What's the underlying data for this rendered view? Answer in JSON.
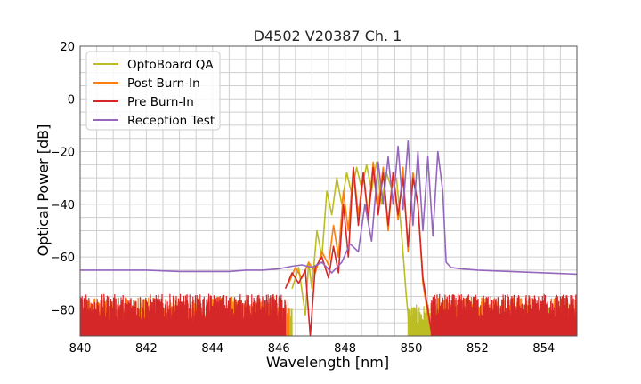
{
  "chart_data": {
    "type": "line",
    "title": "D4502 V20387 Ch. 1",
    "xlabel": "Wavelength [nm]",
    "ylabel": "Optical Power [dB]",
    "xlim": [
      840,
      855
    ],
    "ylim": [
      -90,
      20
    ],
    "xticks": [
      840,
      842,
      844,
      846,
      848,
      850,
      852,
      854
    ],
    "yticks": [
      20,
      0,
      -20,
      -40,
      -60,
      -80
    ],
    "grid": true,
    "legend_position": "top-left",
    "series": [
      {
        "name": "OptoBoard QA",
        "color": "#bcbd22",
        "noise_floor": {
          "from": 840,
          "to": 846.4,
          "base": -88,
          "spread": 10
        },
        "noise_floor_right": {
          "from": 849.9,
          "to": 855,
          "base": -88,
          "spread": 10
        },
        "x": [
          846.4,
          846.6,
          846.8,
          846.9,
          847.0,
          847.15,
          847.3,
          847.45,
          847.6,
          847.75,
          847.9,
          848.05,
          848.2,
          848.35,
          848.5,
          848.65,
          848.8,
          848.95,
          849.1,
          849.25,
          849.4,
          849.55,
          849.7,
          849.85,
          849.95
        ],
        "y": [
          -72,
          -64,
          -82,
          -62,
          -72,
          -50,
          -60,
          -35,
          -44,
          -30,
          -40,
          -28,
          -36,
          -26,
          -34,
          -25,
          -35,
          -24,
          -40,
          -28,
          -34,
          -30,
          -50,
          -75,
          -88
        ]
      },
      {
        "name": "Post Burn-In",
        "color": "#ff7f0e",
        "noise_floor": {
          "from": 840,
          "to": 846.3,
          "base": -87,
          "spread": 12
        },
        "noise_floor_right": {
          "from": 850.6,
          "to": 855,
          "base": -87,
          "spread": 12
        },
        "x": [
          846.3,
          846.5,
          846.7,
          846.9,
          847.1,
          847.3,
          847.5,
          847.65,
          847.8,
          847.95,
          848.1,
          848.25,
          848.4,
          848.55,
          848.7,
          848.85,
          849.0,
          849.15,
          849.3,
          849.45,
          849.6,
          849.75,
          849.9,
          850.05,
          850.2,
          850.35,
          850.5,
          850.6
        ],
        "y": [
          -70,
          -64,
          -68,
          -62,
          -66,
          -58,
          -63,
          -48,
          -60,
          -35,
          -50,
          -26,
          -44,
          -28,
          -44,
          -24,
          -40,
          -26,
          -50,
          -28,
          -46,
          -26,
          -58,
          -28,
          -40,
          -70,
          -82,
          -88
        ]
      },
      {
        "name": "Pre Burn-In",
        "color": "#d62728",
        "noise_floor": {
          "from": 840,
          "to": 846.2,
          "base": -86,
          "spread": 12
        },
        "noise_floor_right": {
          "from": 850.6,
          "to": 855,
          "base": -86,
          "spread": 12
        },
        "x": [
          846.2,
          846.4,
          846.6,
          846.8,
          846.95,
          847.1,
          847.3,
          847.5,
          847.65,
          847.8,
          847.95,
          848.1,
          848.25,
          848.4,
          848.55,
          848.7,
          848.85,
          849.0,
          849.15,
          849.3,
          849.45,
          849.6,
          849.75,
          849.9,
          850.05,
          850.2,
          850.35,
          850.5,
          850.6
        ],
        "y": [
          -72,
          -66,
          -70,
          -65,
          -90,
          -64,
          -60,
          -68,
          -56,
          -66,
          -40,
          -60,
          -26,
          -48,
          -28,
          -46,
          -26,
          -44,
          -28,
          -48,
          -28,
          -44,
          -30,
          -56,
          -30,
          -40,
          -68,
          -80,
          -88
        ]
      },
      {
        "name": "Reception Test",
        "color": "#9467bd",
        "x": [
          840,
          841,
          842,
          843,
          844,
          844.5,
          845,
          845.5,
          846,
          846.4,
          846.7,
          847.0,
          847.3,
          847.6,
          847.9,
          848.15,
          848.4,
          848.6,
          848.8,
          849.0,
          849.15,
          849.3,
          849.45,
          849.6,
          849.75,
          849.9,
          850.05,
          850.2,
          850.35,
          850.5,
          850.65,
          850.8,
          850.95,
          851.05,
          851.2,
          851.5,
          852,
          853,
          854,
          855
        ],
        "y": [
          -65,
          -65,
          -65,
          -65.5,
          -65.5,
          -65.5,
          -65,
          -65,
          -64.5,
          -63.5,
          -63,
          -64,
          -62,
          -66,
          -62,
          -55,
          -58,
          -40,
          -54,
          -24,
          -40,
          -22,
          -40,
          -18,
          -42,
          -16,
          -48,
          -20,
          -50,
          -22,
          -52,
          -20,
          -35,
          -62,
          -64,
          -64.5,
          -65,
          -65.5,
          -66,
          -66.5
        ]
      }
    ]
  }
}
